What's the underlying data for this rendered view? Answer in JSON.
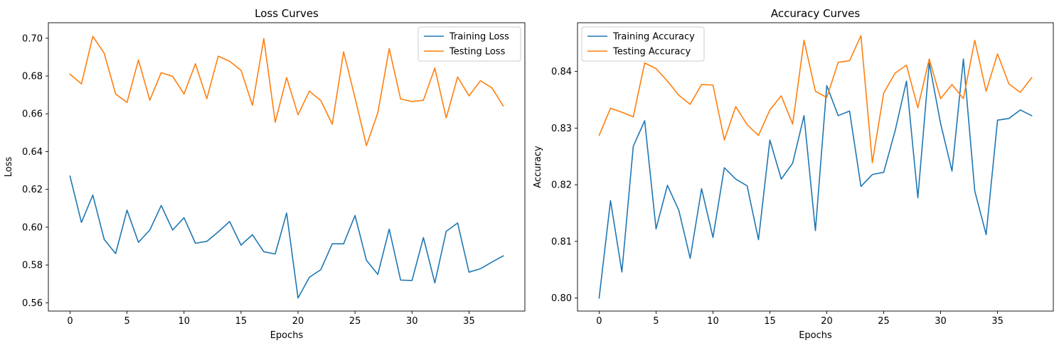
{
  "chart_data": [
    {
      "type": "line",
      "title": "Loss Curves",
      "xlabel": "Epochs",
      "ylabel": "Loss",
      "xlim": [
        -1.9,
        39.9
      ],
      "ylim": [
        0.5556,
        0.7082
      ],
      "xticks": [
        0,
        5,
        10,
        15,
        20,
        25,
        30,
        35
      ],
      "yticks": [
        0.56,
        0.58,
        0.6,
        0.62,
        0.64,
        0.66,
        0.68,
        0.7
      ],
      "ytick_decimals": 2,
      "grid": false,
      "legend_position": "top-right",
      "x": [
        0,
        1,
        2,
        3,
        4,
        5,
        6,
        7,
        8,
        9,
        10,
        11,
        12,
        13,
        14,
        15,
        16,
        17,
        18,
        19,
        20,
        21,
        22,
        23,
        24,
        25,
        26,
        27,
        28,
        29,
        30,
        31,
        32,
        33,
        34,
        35,
        36,
        37,
        38
      ],
      "series": [
        {
          "name": "Training Loss",
          "color": "#1f77b4",
          "values": [
            0.627,
            0.6025,
            0.617,
            0.5935,
            0.586,
            0.609,
            0.592,
            0.5985,
            0.6115,
            0.5985,
            0.605,
            0.5915,
            0.5925,
            0.5975,
            0.603,
            0.5905,
            0.596,
            0.587,
            0.5858,
            0.6075,
            0.5625,
            0.5735,
            0.5775,
            0.5912,
            0.5912,
            0.6062,
            0.5825,
            0.575,
            0.599,
            0.572,
            0.5718,
            0.5945,
            0.5705,
            0.5978,
            0.6022,
            0.5762,
            0.578,
            0.5815,
            0.5848
          ]
        },
        {
          "name": "Testing Loss",
          "color": "#ff7f0e",
          "values": [
            0.681,
            0.6758,
            0.701,
            0.692,
            0.6705,
            0.666,
            0.6885,
            0.6672,
            0.6818,
            0.6798,
            0.6705,
            0.6865,
            0.668,
            0.6905,
            0.6878,
            0.683,
            0.6645,
            0.6998,
            0.6555,
            0.6792,
            0.6595,
            0.672,
            0.667,
            0.6545,
            0.6928,
            0.6685,
            0.6432,
            0.6605,
            0.6945,
            0.6678,
            0.6665,
            0.6672,
            0.6842,
            0.6578,
            0.6795,
            0.6695,
            0.6775,
            0.6738,
            0.6642
          ]
        }
      ]
    },
    {
      "type": "line",
      "title": "Accuracy Curves",
      "xlabel": "Epochs",
      "ylabel": "Accuracy",
      "xlim": [
        -1.9,
        39.9
      ],
      "ylim": [
        0.7977,
        0.8486
      ],
      "xticks": [
        0,
        5,
        10,
        15,
        20,
        25,
        30,
        35
      ],
      "yticks": [
        0.8,
        0.81,
        0.82,
        0.83,
        0.84
      ],
      "ytick_decimals": 2,
      "grid": false,
      "legend_position": "top-left",
      "x": [
        0,
        1,
        2,
        3,
        4,
        5,
        6,
        7,
        8,
        9,
        10,
        11,
        12,
        13,
        14,
        15,
        16,
        17,
        18,
        19,
        20,
        21,
        22,
        23,
        24,
        25,
        26,
        27,
        28,
        29,
        30,
        31,
        32,
        33,
        34,
        35,
        36,
        37,
        38
      ],
      "series": [
        {
          "name": "Training Accuracy",
          "color": "#1f77b4",
          "values": [
            0.8,
            0.8172,
            0.8046,
            0.8268,
            0.8313,
            0.8122,
            0.8199,
            0.8155,
            0.807,
            0.8193,
            0.8107,
            0.823,
            0.821,
            0.8198,
            0.8103,
            0.8279,
            0.821,
            0.8238,
            0.8322,
            0.8119,
            0.8375,
            0.8322,
            0.833,
            0.8197,
            0.8218,
            0.8222,
            0.8295,
            0.8383,
            0.8177,
            0.8415,
            0.8308,
            0.8224,
            0.8422,
            0.8189,
            0.8112,
            0.8314,
            0.8317,
            0.8332,
            0.8322
          ]
        },
        {
          "name": "Testing Accuracy",
          "color": "#ff7f0e",
          "values": [
            0.8287,
            0.8335,
            0.8328,
            0.832,
            0.8415,
            0.8405,
            0.8383,
            0.8358,
            0.8342,
            0.8377,
            0.8376,
            0.8279,
            0.8338,
            0.8306,
            0.8287,
            0.8332,
            0.8357,
            0.8307,
            0.8455,
            0.8365,
            0.8354,
            0.8416,
            0.8419,
            0.8463,
            0.8239,
            0.8362,
            0.8397,
            0.8411,
            0.8336,
            0.8422,
            0.8352,
            0.8377,
            0.8352,
            0.8455,
            0.8365,
            0.8431,
            0.8378,
            0.8363,
            0.8389
          ]
        }
      ]
    }
  ]
}
